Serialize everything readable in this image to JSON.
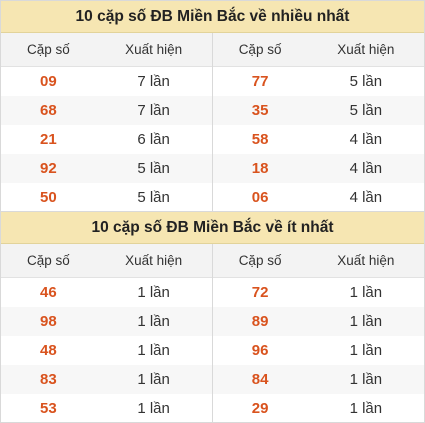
{
  "colors": {
    "header_bg": "#f6e6b2",
    "number": "#d9531e",
    "text": "#333333"
  },
  "top": {
    "title": "10 cặp số ĐB Miền Bắc về nhiều nhất",
    "col_pair": "Cặp số",
    "col_count": "Xuất hiện",
    "left": [
      {
        "pair": "09",
        "count": "7 lần"
      },
      {
        "pair": "68",
        "count": "7 lần"
      },
      {
        "pair": "21",
        "count": "6 lần"
      },
      {
        "pair": "92",
        "count": "5 lần"
      },
      {
        "pair": "50",
        "count": "5 lần"
      }
    ],
    "right": [
      {
        "pair": "77",
        "count": "5 lần"
      },
      {
        "pair": "35",
        "count": "5 lần"
      },
      {
        "pair": "58",
        "count": "4 lần"
      },
      {
        "pair": "18",
        "count": "4 lần"
      },
      {
        "pair": "06",
        "count": "4 lần"
      }
    ]
  },
  "bottom": {
    "title": "10 cặp số ĐB Miền Bắc về ít nhất",
    "col_pair": "Cặp số",
    "col_count": "Xuất hiện",
    "left": [
      {
        "pair": "46",
        "count": "1 lần"
      },
      {
        "pair": "98",
        "count": "1 lần"
      },
      {
        "pair": "48",
        "count": "1 lần"
      },
      {
        "pair": "83",
        "count": "1 lần"
      },
      {
        "pair": "53",
        "count": "1 lần"
      }
    ],
    "right": [
      {
        "pair": "72",
        "count": "1 lần"
      },
      {
        "pair": "89",
        "count": "1 lần"
      },
      {
        "pair": "96",
        "count": "1 lần"
      },
      {
        "pair": "84",
        "count": "1 lần"
      },
      {
        "pair": "29",
        "count": "1 lần"
      }
    ]
  }
}
